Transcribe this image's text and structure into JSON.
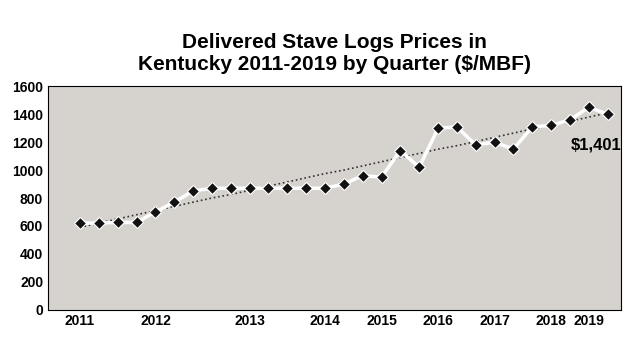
{
  "chart_data": {
    "type": "line",
    "title": "Delivered Stave Logs Prices in\nKentucky 2011-2019 by Quarter ($/MBF)",
    "categories": [
      "2011",
      null,
      null,
      null,
      "2012",
      null,
      null,
      null,
      null,
      "2013",
      null,
      null,
      null,
      "2014",
      null,
      null,
      "2015",
      null,
      null,
      "2016",
      null,
      null,
      "2017",
      null,
      null,
      "2018",
      null,
      "2019",
      null
    ],
    "series": [
      {
        "values": [
          620,
          620,
          625,
          625,
          700,
          770,
          850,
          870,
          870,
          870,
          870,
          870,
          870,
          870,
          900,
          960,
          950,
          1140,
          1020,
          1300,
          1310,
          1180,
          1200,
          1150,
          1310,
          1320,
          1360,
          1450,
          1401
        ],
        "color": "#ffffff",
        "marker": "diamond",
        "line_style": "solid"
      },
      {
        "values": [
          590,
          620,
          650,
          680,
          710,
          740,
          770,
          800,
          825,
          855,
          885,
          915,
          945,
          975,
          1000,
          1030,
          1060,
          1090,
          1120,
          1150,
          1175,
          1205,
          1235,
          1265,
          1295,
          1325,
          1350,
          1380,
          1410
        ],
        "color": "#333333",
        "marker": "none",
        "line_style": "dotted"
      }
    ],
    "annotations": [
      {
        "text": "$1,401"
      }
    ],
    "ylim": [
      0,
      1600
    ],
    "yticks": [
      0,
      200,
      400,
      600,
      800,
      1000,
      1200,
      1400,
      1600
    ],
    "grid": false
  }
}
